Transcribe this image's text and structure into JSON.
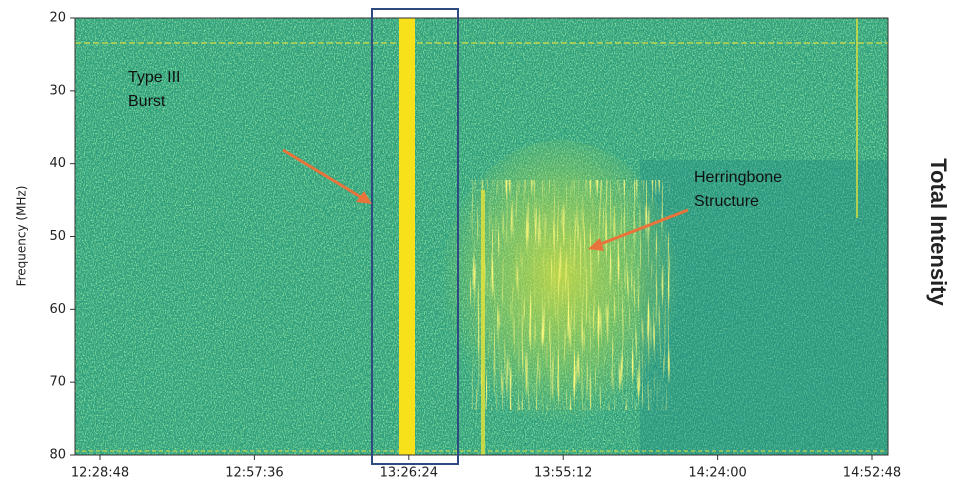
{
  "chart_data": {
    "type": "spectrogram",
    "ylabel": "Frequency (MHz)",
    "side_label": "Total Intensity",
    "ylim": [
      80,
      20
    ],
    "yticks": [
      20,
      30,
      40,
      50,
      60,
      70,
      80
    ],
    "xlim": [
      "12:24:08",
      "14:55:47"
    ],
    "xticks": [
      "12:28:48",
      "12:57:36",
      "13:26:24",
      "13:55:12",
      "14:24:00",
      "14:52:48"
    ],
    "annotations": [
      "Type III Burst",
      "Herringbone Structure"
    ],
    "background_color": "#2e9e7c",
    "highlight_color": "#f7e11b",
    "arrow_color": "#e8743b",
    "side_label_color": "#ff0000"
  }
}
